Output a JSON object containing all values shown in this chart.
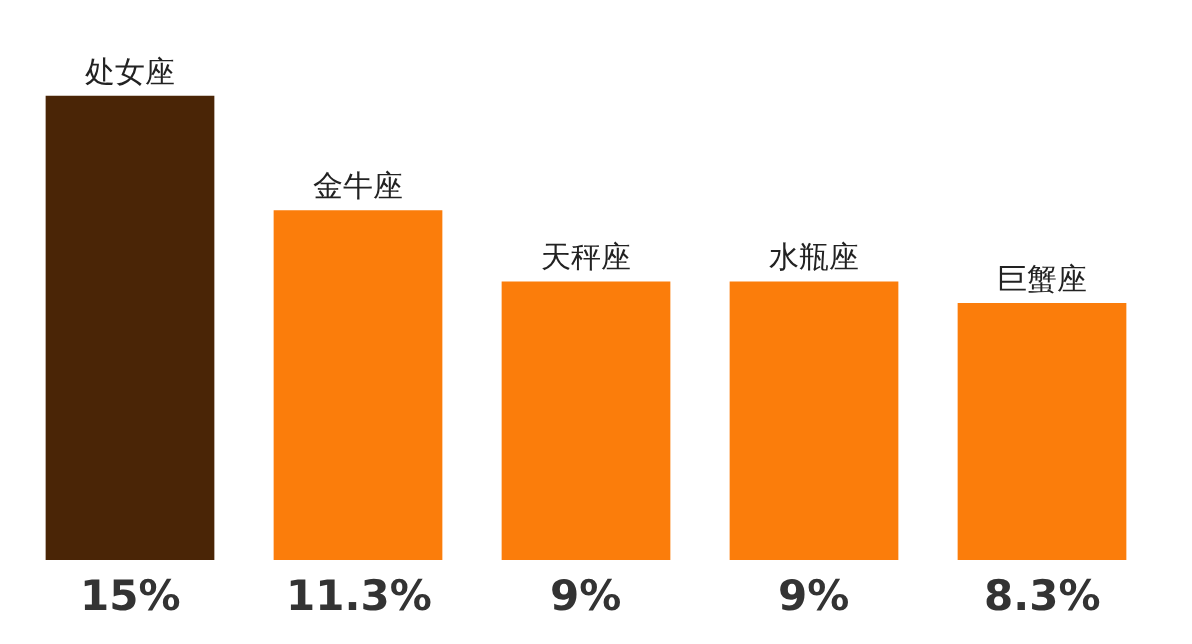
{
  "chart_data": {
    "type": "bar",
    "categories": [
      "处女座",
      "金牛座",
      "天秤座",
      "水瓶座",
      "巨蟹座"
    ],
    "values": [
      15,
      11.3,
      9,
      9,
      8.3
    ],
    "colors": [
      "#4a2506",
      "#fb7d0b",
      "#fb7d0b",
      "#fb7d0b",
      "#fb7d0b"
    ],
    "value_labels": [
      "15%",
      "11.3%",
      "9%",
      "9%",
      "8.3%"
    ]
  }
}
